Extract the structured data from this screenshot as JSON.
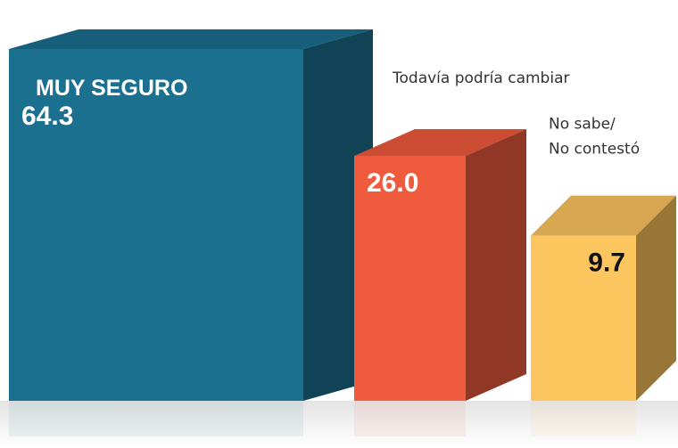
{
  "chart_data": {
    "type": "box3d",
    "categories": [
      "MUY SEGURO",
      "Todavía podría cambiar",
      "No sabe/\nNo contestó"
    ],
    "values": [
      64.3,
      26.0,
      9.7
    ],
    "value_labels": [
      "64.3",
      "26.0",
      "9.7"
    ],
    "colors": [
      "#1b6f8f",
      "#f05b3d",
      "#fcc55e"
    ]
  }
}
